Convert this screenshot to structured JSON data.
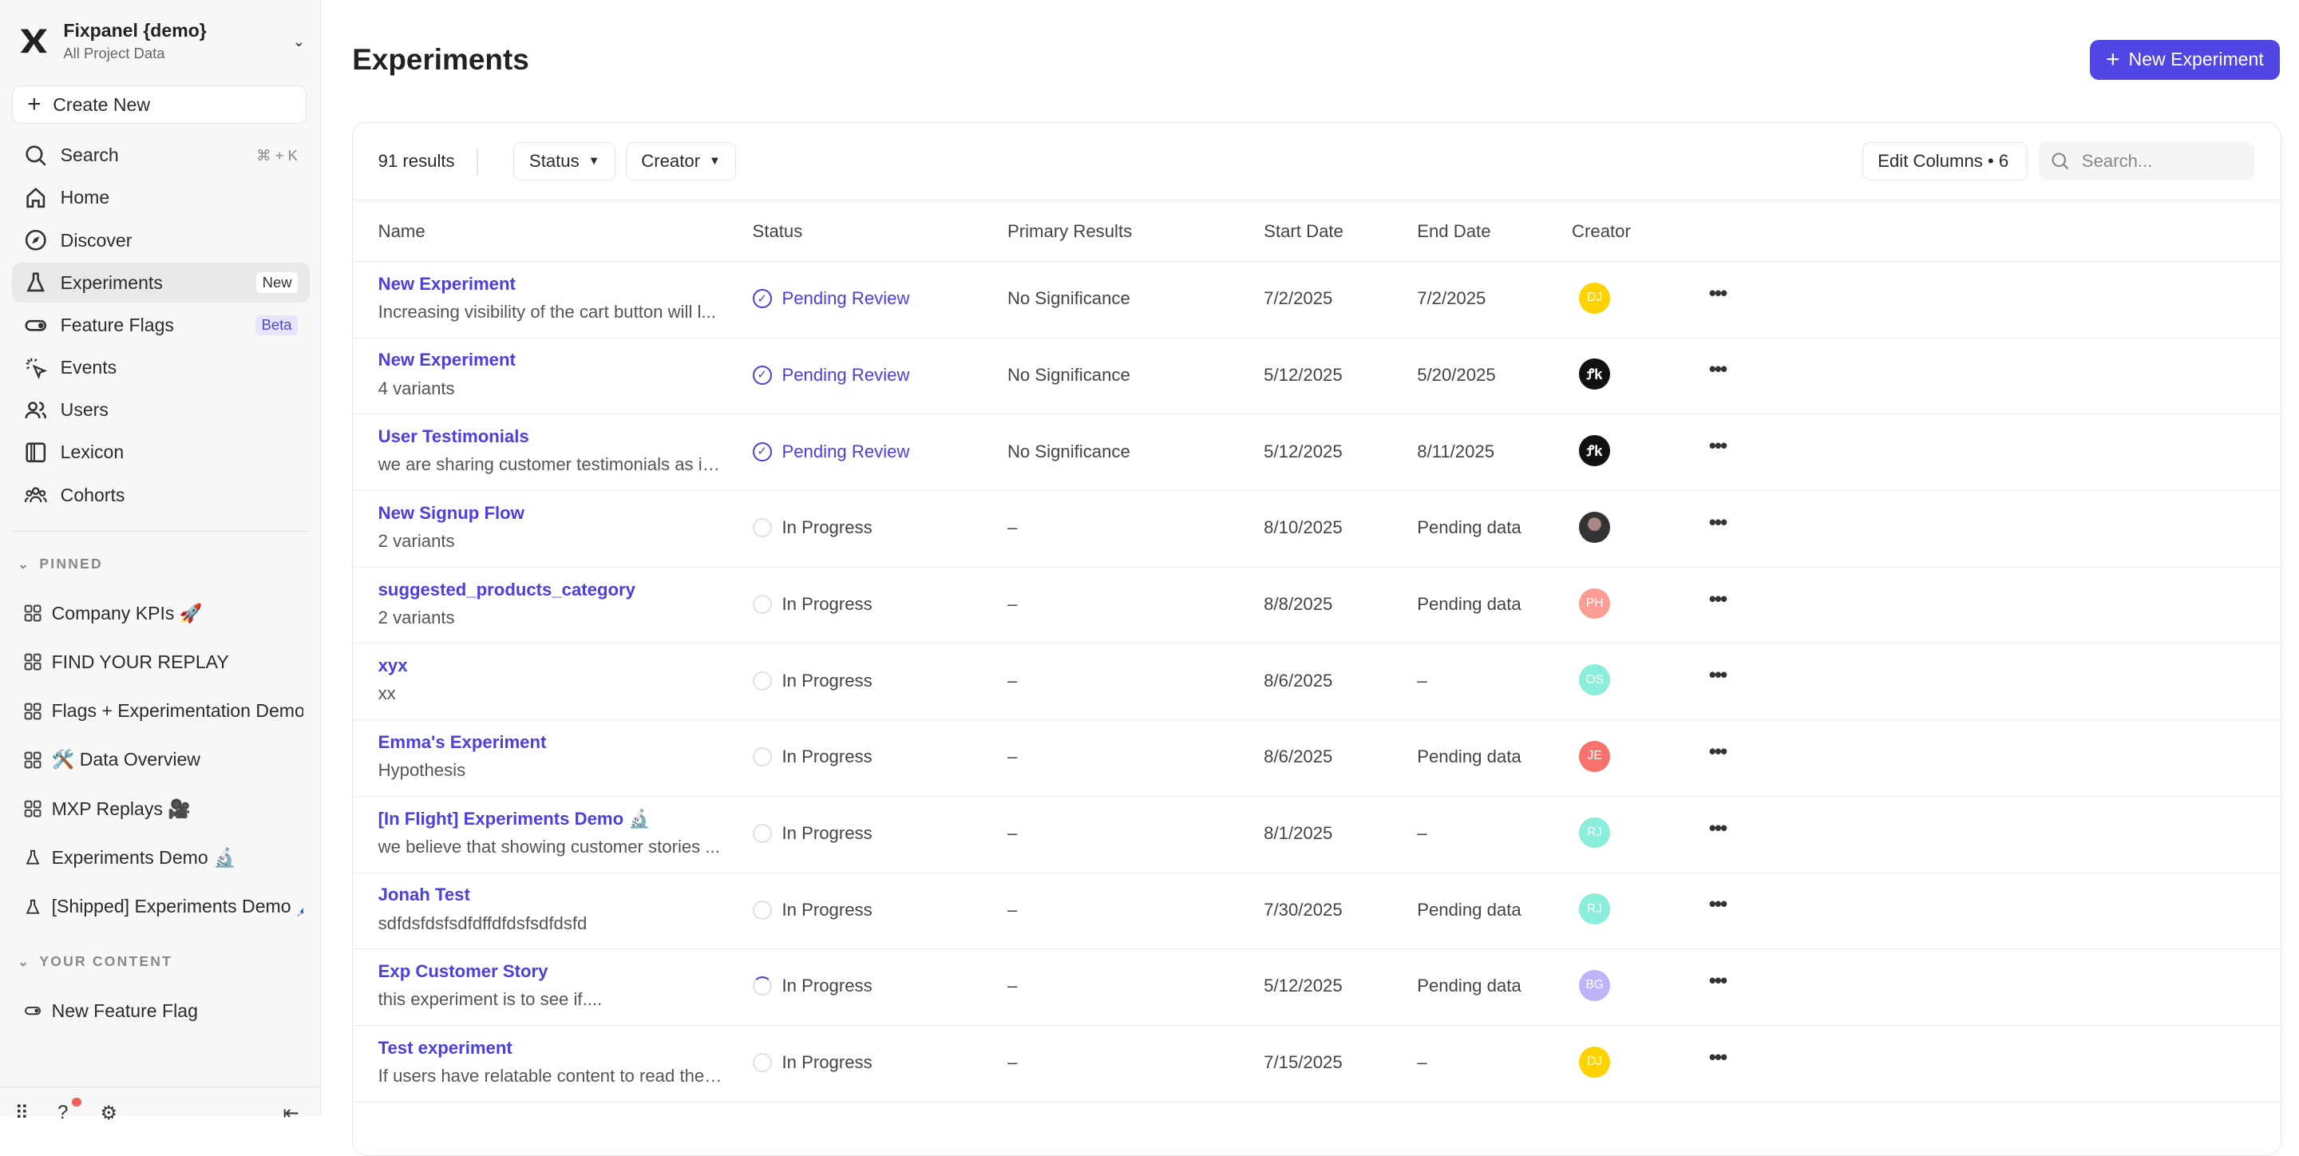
{
  "sidebar": {
    "project_name": "Fixpanel {demo}",
    "project_sub": "All Project Data",
    "create_new": "Create New",
    "nav": [
      {
        "label": "Search",
        "icon": "search-icon",
        "shortcut": "⌘ + K"
      },
      {
        "label": "Home",
        "icon": "home-icon"
      },
      {
        "label": "Discover",
        "icon": "compass-icon"
      },
      {
        "label": "Experiments",
        "icon": "flask-icon",
        "badge": "New",
        "active": true
      },
      {
        "label": "Feature Flags",
        "icon": "toggle-icon",
        "badge": "Beta"
      },
      {
        "label": "Events",
        "icon": "cursor-click-icon"
      },
      {
        "label": "Users",
        "icon": "users-icon"
      },
      {
        "label": "Lexicon",
        "icon": "book-icon"
      },
      {
        "label": "Cohorts",
        "icon": "cohorts-icon"
      }
    ],
    "pinned_label": "PINNED",
    "pinned": [
      {
        "label": "Company KPIs 🚀",
        "icon": "board-icon"
      },
      {
        "label": "FIND YOUR REPLAY",
        "icon": "board-icon"
      },
      {
        "label": "Flags + Experimentation Demo 🧪",
        "icon": "board-icon"
      },
      {
        "label": "🛠️ Data Overview",
        "icon": "board-icon"
      },
      {
        "label": "MXP Replays 🎥",
        "icon": "board-icon"
      },
      {
        "label": "Experiments Demo 🔬",
        "icon": "flask-icon"
      },
      {
        "label": "[Shipped] Experiments Demo 🖊️",
        "icon": "flask-icon"
      }
    ],
    "your_content_label": "YOUR CONTENT",
    "your_content": [
      {
        "label": "New Feature Flag",
        "icon": "toggle-icon"
      }
    ]
  },
  "header": {
    "title": "Experiments",
    "new_button": "New Experiment"
  },
  "toolbar": {
    "results": "91 results",
    "status_filter": "Status",
    "creator_filter": "Creator",
    "edit_columns": "Edit Columns • 6",
    "search_placeholder": "Search..."
  },
  "columns": [
    "Name",
    "Status",
    "Primary Results",
    "Start Date",
    "End Date",
    "Creator"
  ],
  "colors": {
    "accent": "#5046e4"
  },
  "rows": [
    {
      "name": "New Experiment",
      "desc": "Increasing visibility of the cart button will l...",
      "status": "Pending Review",
      "status_type": "pending",
      "primary": "No Significance",
      "start": "7/2/2025",
      "end": "7/2/2025",
      "creator": "DJ",
      "color": "#ffd200"
    },
    {
      "name": "New Experiment",
      "desc": "4 variants",
      "status": "Pending Review",
      "status_type": "pending",
      "primary": "No Significance",
      "start": "5/12/2025",
      "end": "5/20/2025",
      "creator": "FK",
      "color": "#111111"
    },
    {
      "name": "User Testimonials",
      "desc": "we are sharing customer testimonials as in...",
      "status": "Pending Review",
      "status_type": "pending",
      "primary": "No Significance",
      "start": "5/12/2025",
      "end": "8/11/2025",
      "creator": "FK",
      "color": "#111111"
    },
    {
      "name": "New Signup Flow",
      "desc": "2 variants",
      "status": "In Progress",
      "status_type": "progress",
      "primary": "–",
      "start": "8/10/2025",
      "end": "Pending data",
      "creator": "",
      "color": "#555555"
    },
    {
      "name": "suggested_products_category",
      "desc": "2 variants",
      "status": "In Progress",
      "status_type": "progress",
      "primary": "–",
      "start": "8/8/2025",
      "end": "Pending data",
      "creator": "PH",
      "color": "#fb9d92"
    },
    {
      "name": "xyx",
      "desc": "xx",
      "status": "In Progress",
      "status_type": "progress",
      "primary": "–",
      "start": "8/6/2025",
      "end": "–",
      "creator": "OS",
      "color": "#8aeedb"
    },
    {
      "name": "Emma's Experiment",
      "desc": "Hypothesis",
      "status": "In Progress",
      "status_type": "progress",
      "primary": "–",
      "start": "8/6/2025",
      "end": "Pending data",
      "creator": "JE",
      "color": "#f8716a"
    },
    {
      "name": "[In Flight] Experiments Demo 🔬",
      "desc": "we believe that showing customer stories ...",
      "status": "In Progress",
      "status_type": "progress",
      "primary": "–",
      "start": "8/1/2025",
      "end": "–",
      "creator": "RJ",
      "color": "#8aeedb"
    },
    {
      "name": "Jonah Test",
      "desc": "sdfdsfdsfsdfdffdfdsfsdfdsfd",
      "status": "In Progress",
      "status_type": "progress",
      "primary": "–",
      "start": "7/30/2025",
      "end": "Pending data",
      "creator": "RJ",
      "color": "#8aeedb"
    },
    {
      "name": "Exp Customer Story",
      "desc": "this experiment is to see if....",
      "status": "In Progress",
      "status_type": "progress_spin",
      "primary": "–",
      "start": "5/12/2025",
      "end": "Pending data",
      "creator": "BG",
      "color": "#bfb3f7"
    },
    {
      "name": "Test experiment",
      "desc": "If users have relatable content to read they...",
      "status": "In Progress",
      "status_type": "progress",
      "primary": "–",
      "start": "7/15/2025",
      "end": "–",
      "creator": "DJ",
      "color": "#ffd200"
    }
  ]
}
